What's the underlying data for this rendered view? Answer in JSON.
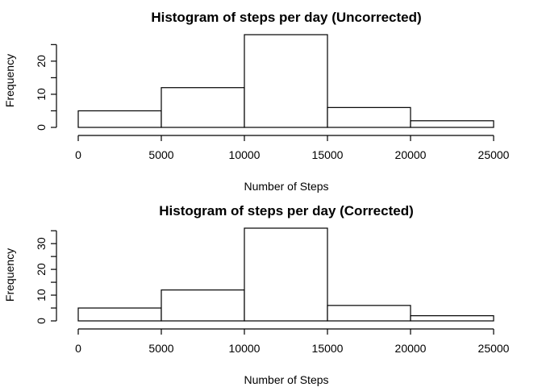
{
  "chart_data": [
    {
      "type": "bar",
      "title": "Histogram of steps per day (Uncorrected)",
      "xlabel": "Number of Steps",
      "ylabel": "Frequency",
      "bins": [
        [
          0,
          5000
        ],
        [
          5000,
          10000
        ],
        [
          10000,
          15000
        ],
        [
          15000,
          20000
        ],
        [
          20000,
          25000
        ]
      ],
      "values": [
        5,
        12,
        28,
        6,
        2
      ],
      "xlim": [
        0,
        25000
      ],
      "ylim": [
        0,
        28
      ],
      "xticks": [
        0,
        5000,
        10000,
        15000,
        20000,
        25000
      ],
      "yticks": [
        0,
        10,
        20
      ],
      "grid": false
    },
    {
      "type": "bar",
      "title": "Histogram of steps per day (Corrected)",
      "xlabel": "Number of Steps",
      "ylabel": "Frequency",
      "bins": [
        [
          0,
          5000
        ],
        [
          5000,
          10000
        ],
        [
          10000,
          15000
        ],
        [
          15000,
          20000
        ],
        [
          20000,
          25000
        ]
      ],
      "values": [
        5,
        12,
        36,
        6,
        2
      ],
      "xlim": [
        0,
        25000
      ],
      "ylim": [
        0,
        36
      ],
      "xticks": [
        0,
        5000,
        10000,
        15000,
        20000,
        25000
      ],
      "yticks": [
        0,
        10,
        20,
        30
      ],
      "grid": false
    }
  ]
}
